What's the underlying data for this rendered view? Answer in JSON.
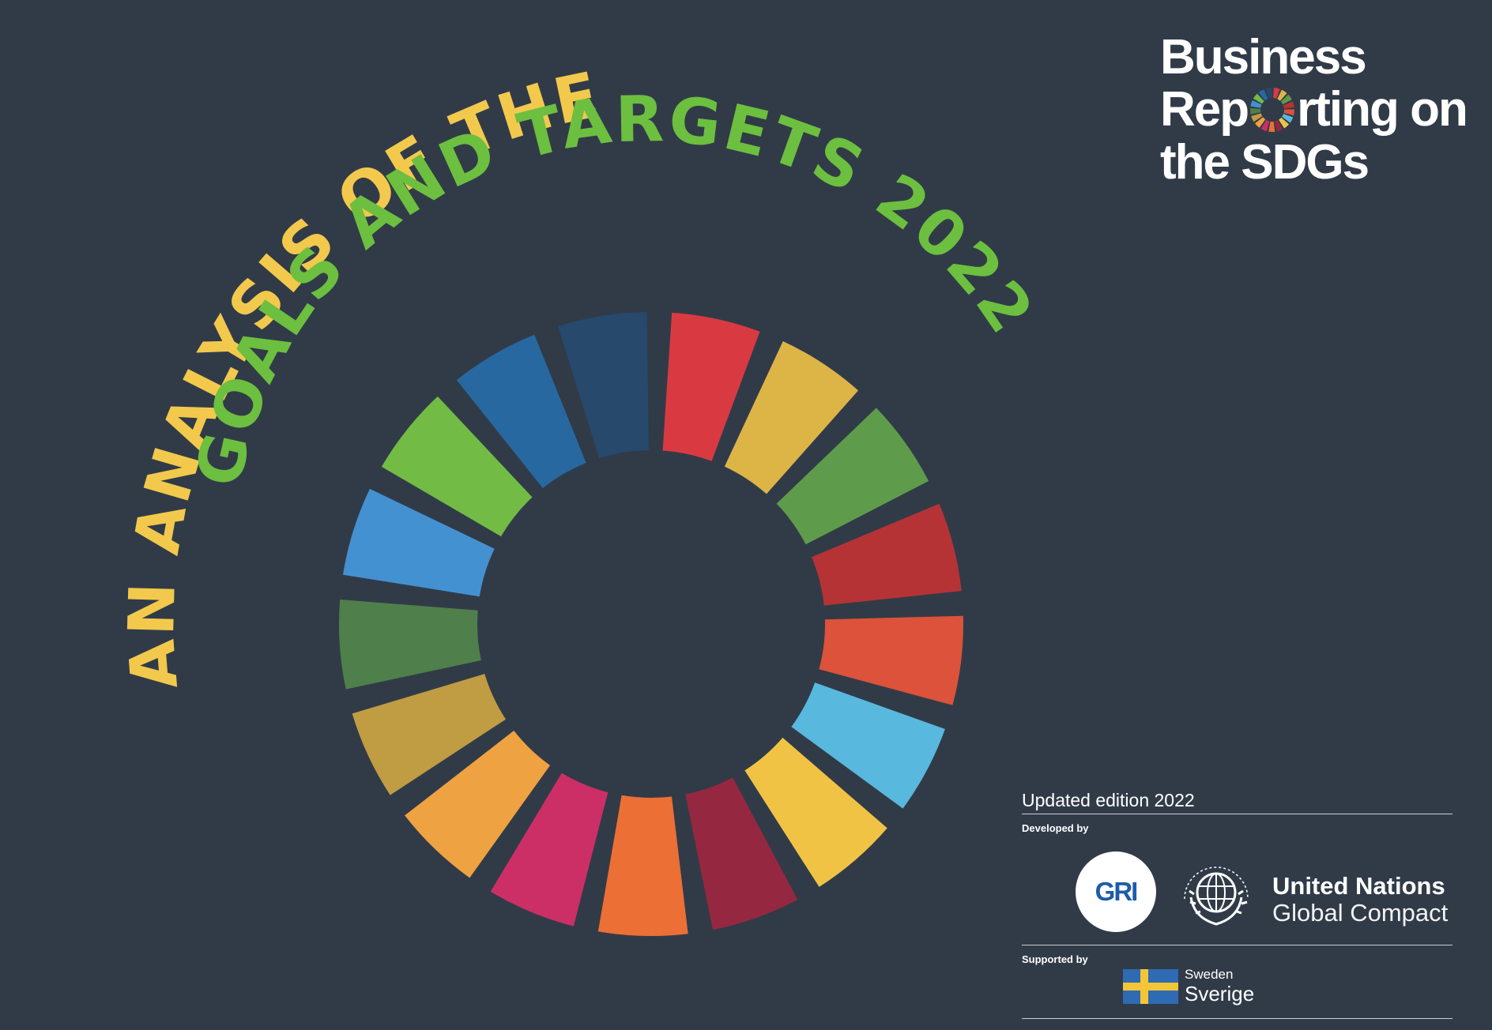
{
  "cover": {
    "title_line1": "AN ANALYSIS OF THE",
    "title_line2": "GOALS AND TARGETS 2022",
    "title_line1_color": "#f2c94c",
    "title_line2_color": "#6cbf3f",
    "wheel_colors": [
      "#d93a42",
      "#ddb547",
      "#5e9c4b",
      "#b53335",
      "#dc523a",
      "#58b8de",
      "#f1c345",
      "#952840",
      "#ec6f36",
      "#cb2f66",
      "#efa242",
      "#c09c42",
      "#4f7f4a",
      "#4491d2",
      "#72bb45",
      "#2768a0",
      "#26496c"
    ]
  },
  "brand": {
    "line1": "Business",
    "line2_pre": "Rep",
    "line2_post": "rting on",
    "line3": "the SDGs"
  },
  "footer": {
    "edition": "Updated edition 2022",
    "developed_by": "Developed by",
    "gri": "GRI",
    "un_name": "United Nations",
    "un_sub": "Global Compact",
    "supported_by": "Supported by",
    "sweden": "Sweden",
    "sverige": "Sverige"
  }
}
